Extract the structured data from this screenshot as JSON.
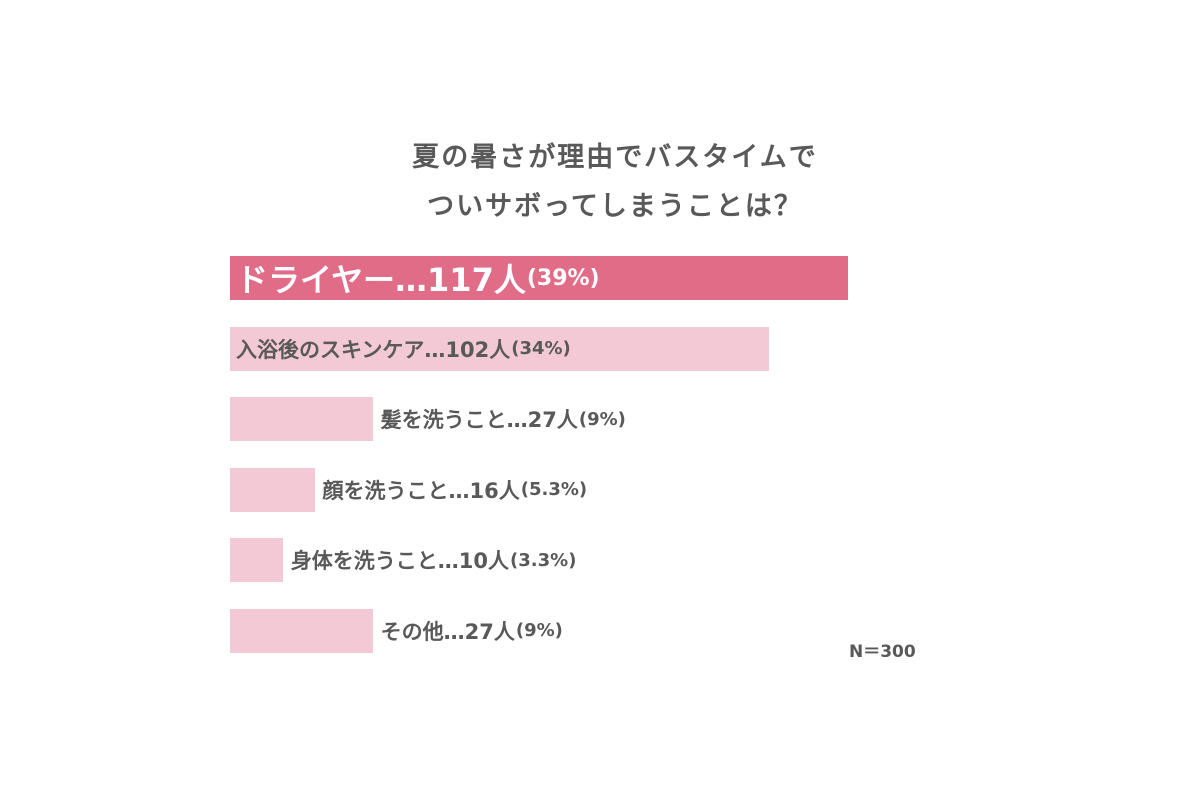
{
  "chart_data": {
    "type": "bar",
    "orientation": "horizontal",
    "title": [
      "夏の暑さが理由でバスタイムで",
      "ついサボってしまうことは？"
    ],
    "categories": [
      "ドライヤー",
      "入浴後のスキンケア",
      "髪を洗うこと",
      "顔を洗うこと",
      "身体を洗うこと",
      "その他"
    ],
    "labels": [
      {
        "main": "ドライヤー…117人",
        "pct": "(39%)"
      },
      {
        "main": "入浴後のスキンケア…102人",
        "pct": "(34%)"
      },
      {
        "main": "髪を洗うこと…27人",
        "pct": "(9%)"
      },
      {
        "main": "顔を洗うこと…16人",
        "pct": "(5.3%)"
      },
      {
        "main": "身体を洗うこと…10人",
        "pct": "(3.3%)"
      },
      {
        "main": "その他…27人",
        "pct": "(9%)"
      }
    ],
    "values": [
      117,
      102,
      27,
      16,
      10,
      27
    ],
    "percentages": [
      39,
      34,
      9,
      5.3,
      3.3,
      9
    ],
    "unit": "人",
    "highlight_index": 0,
    "colors": {
      "highlight": "#e06c87",
      "default": "#f2c9d4",
      "text": "#595959",
      "highlight_text": "#ffffff"
    },
    "note": "N＝300",
    "grid": false,
    "legend": "none"
  }
}
